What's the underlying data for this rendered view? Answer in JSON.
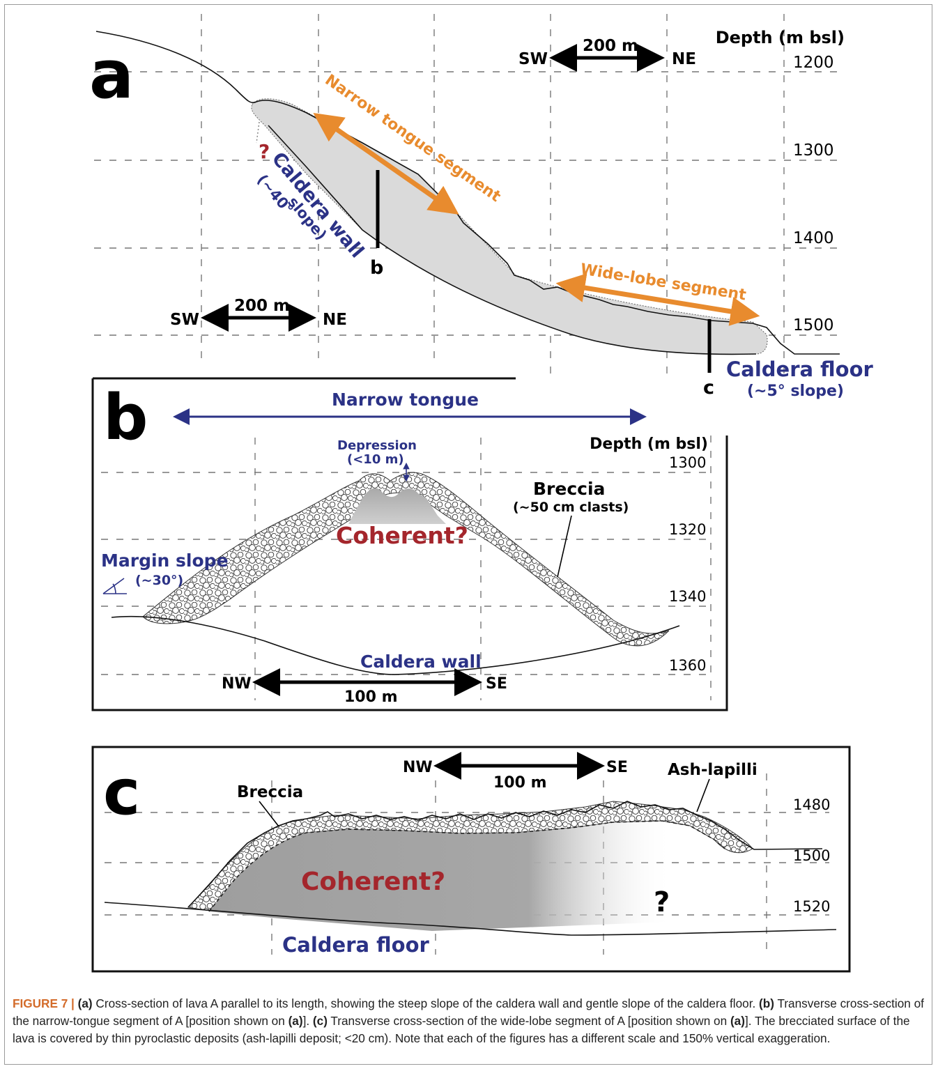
{
  "colors": {
    "orange": "#e88b2e",
    "navy": "#2b3286",
    "red": "#a4262c",
    "lava_fill": "#dadada",
    "coherent_fill": "#a9a9a9",
    "caption_label": "#d36b2a"
  },
  "panel_a": {
    "letter": "a",
    "depth_title": "Depth (m bsl)",
    "depth_ticks": [
      "1200",
      "1300",
      "1400",
      "1500"
    ],
    "scale_top": {
      "left": "SW",
      "length": "200 m",
      "right": "NE"
    },
    "scale_bottom": {
      "left": "SW",
      "length": "200 m",
      "right": "NE"
    },
    "narrow_tongue_label": "Narrow tongue segment",
    "wide_lobe_label": "Wide-lobe segment",
    "question_mark": "?",
    "caldera_wall_label": "Caldera wall",
    "caldera_wall_slope_1": "(~40°",
    "caldera_wall_slope_2": "slope)",
    "caldera_floor_label": "Caldera floor",
    "caldera_floor_slope": "(~5° slope)",
    "section_b_marker": "b",
    "section_c_marker": "c"
  },
  "panel_b": {
    "letter": "b",
    "title_arrow_label": "Narrow tongue",
    "depth_title": "Depth (m bsl)",
    "depth_ticks": [
      "1300",
      "1320",
      "1340",
      "1360"
    ],
    "depression_label_1": "Depression",
    "depression_label_2": "(<10 m)",
    "breccia_label": "Breccia",
    "breccia_clasts": "(~50 cm clasts)",
    "coherent_label": "Coherent?",
    "margin_slope_label": "Margin slope",
    "margin_slope_angle": "(~30°)",
    "caldera_wall_label": "Caldera wall",
    "scale": {
      "left": "NW",
      "length": "100 m",
      "right": "SE"
    }
  },
  "panel_c": {
    "letter": "c",
    "scale": {
      "left": "NW",
      "length": "100 m",
      "right": "SE"
    },
    "breccia_label": "Breccia",
    "ash_label": "Ash-lapilli",
    "depth_ticks": [
      "1480",
      "1500",
      "1520"
    ],
    "coherent_label": "Coherent?",
    "question_mark": "?",
    "caldera_floor_label": "Caldera floor"
  },
  "caption": {
    "figure_label": "FIGURE 7 |",
    "a_ref": "(a)",
    "a_text": " Cross-section of lava A parallel to its length, showing the steep slope of the caldera wall and gentle slope of the caldera floor. ",
    "b_ref": "(b)",
    "b_text": " Transverse cross-section of the narrow-tongue segment of A [position shown on ",
    "b_pos": "(a)",
    "b_end": "]. ",
    "c_ref": "(c)",
    "c_text": " Transverse cross-section of the wide-lobe segment of A [position shown on ",
    "c_pos": "(a)",
    "c_end": "]. The brecciated surface of the lava is covered by thin pyroclastic deposits (ash-lapilli deposit; <20 cm). Note that each of the figures has a different scale and 150% vertical exaggeration."
  }
}
